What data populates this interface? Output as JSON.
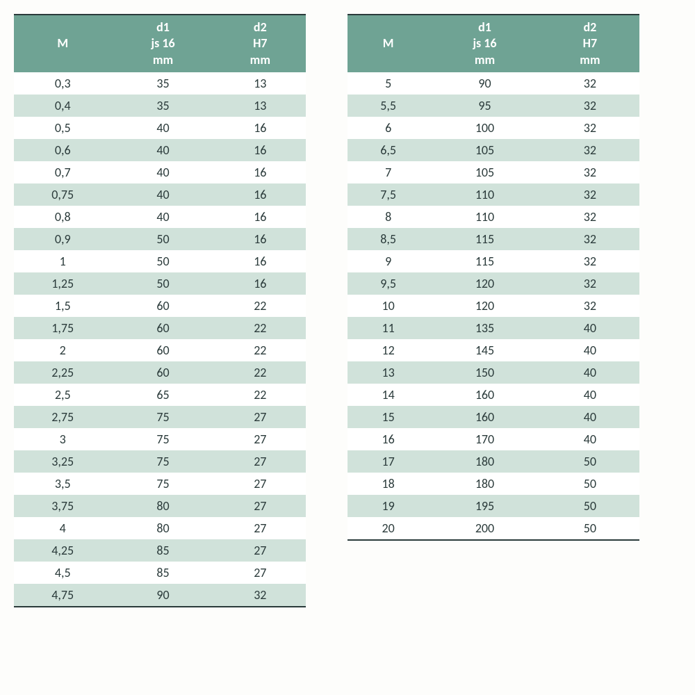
{
  "header": {
    "col1": "M",
    "col2_line1": "d1",
    "col2_line2": "js 16",
    "col2_line3": "mm",
    "col3_line1": "d2",
    "col3_line2": "H7",
    "col3_line3": "mm"
  },
  "colors": {
    "header_bg": "#6fa394",
    "header_text": "#ffffff",
    "row_odd_bg": "#ffffff",
    "row_even_bg": "#d0e2da",
    "border": "#2a3a3a",
    "text": "#2a3a3a"
  },
  "typography": {
    "font_family": "Calibri",
    "header_fontsize": 18,
    "cell_fontsize": 18
  },
  "table_left": {
    "columns": [
      "M",
      "d1 js 16 mm",
      "d2 H7 mm"
    ],
    "rows": [
      [
        "0,3",
        "35",
        "13"
      ],
      [
        "0,4",
        "35",
        "13"
      ],
      [
        "0,5",
        "40",
        "16"
      ],
      [
        "0,6",
        "40",
        "16"
      ],
      [
        "0,7",
        "40",
        "16"
      ],
      [
        "0,75",
        "40",
        "16"
      ],
      [
        "0,8",
        "40",
        "16"
      ],
      [
        "0,9",
        "50",
        "16"
      ],
      [
        "1",
        "50",
        "16"
      ],
      [
        "1,25",
        "50",
        "16"
      ],
      [
        "1,5",
        "60",
        "22"
      ],
      [
        "1,75",
        "60",
        "22"
      ],
      [
        "2",
        "60",
        "22"
      ],
      [
        "2,25",
        "60",
        "22"
      ],
      [
        "2,5",
        "65",
        "22"
      ],
      [
        "2,75",
        "75",
        "27"
      ],
      [
        "3",
        "75",
        "27"
      ],
      [
        "3,25",
        "75",
        "27"
      ],
      [
        "3,5",
        "75",
        "27"
      ],
      [
        "3,75",
        "80",
        "27"
      ],
      [
        "4",
        "80",
        "27"
      ],
      [
        "4,25",
        "85",
        "27"
      ],
      [
        "4,5",
        "85",
        "27"
      ],
      [
        "4,75",
        "90",
        "32"
      ]
    ]
  },
  "table_right": {
    "columns": [
      "M",
      "d1 js 16 mm",
      "d2 H7 mm"
    ],
    "rows": [
      [
        "5",
        "90",
        "32"
      ],
      [
        "5,5",
        "95",
        "32"
      ],
      [
        "6",
        "100",
        "32"
      ],
      [
        "6,5",
        "105",
        "32"
      ],
      [
        "7",
        "105",
        "32"
      ],
      [
        "7,5",
        "110",
        "32"
      ],
      [
        "8",
        "110",
        "32"
      ],
      [
        "8,5",
        "115",
        "32"
      ],
      [
        "9",
        "115",
        "32"
      ],
      [
        "9,5",
        "120",
        "32"
      ],
      [
        "10",
        "120",
        "32"
      ],
      [
        "11",
        "135",
        "40"
      ],
      [
        "12",
        "145",
        "40"
      ],
      [
        "13",
        "150",
        "40"
      ],
      [
        "14",
        "160",
        "40"
      ],
      [
        "15",
        "160",
        "40"
      ],
      [
        "16",
        "170",
        "40"
      ],
      [
        "17",
        "180",
        "50"
      ],
      [
        "18",
        "180",
        "50"
      ],
      [
        "19",
        "195",
        "50"
      ],
      [
        "20",
        "200",
        "50"
      ]
    ]
  }
}
